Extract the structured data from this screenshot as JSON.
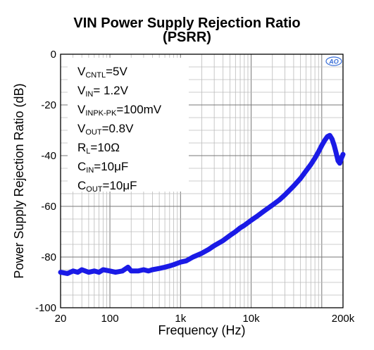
{
  "chart_data": {
    "type": "line",
    "title": "VIN Power Supply Rejection Ratio",
    "subtitle": "(PSRR)",
    "xlabel": "Frequency (Hz)",
    "ylabel": "Power Supply Rejection Ratio (dB)",
    "xscale": "log",
    "xlim": [
      20,
      200000
    ],
    "ylim": [
      -100,
      0
    ],
    "x_tick_labels": [
      "20",
      "100",
      "1k",
      "10k",
      "200k"
    ],
    "x_tick_values": [
      20,
      100,
      1000,
      10000,
      200000
    ],
    "y_tick_labels": [
      "0",
      "-20",
      "-40",
      "-60",
      "-80",
      "-100"
    ],
    "y_tick_values": [
      0,
      -20,
      -40,
      -60,
      -80,
      -100
    ],
    "grid": true,
    "series_color": "#1a1ae6",
    "series": [
      {
        "x": [
          20,
          25,
          30,
          35,
          40,
          50,
          60,
          70,
          80,
          100,
          120,
          150,
          180,
          200,
          250,
          300,
          350,
          400,
          500,
          600,
          700,
          800,
          1000,
          1200,
          1500,
          2000,
          2500,
          3000,
          4000,
          5000,
          6000,
          7000,
          8000,
          10000,
          12000,
          15000,
          20000,
          25000,
          30000,
          40000,
          50000,
          60000,
          70000,
          80000,
          90000,
          100000,
          110000,
          120000,
          130000,
          140000,
          150000,
          160000,
          170000,
          180000,
          190000,
          200000
        ],
        "y": [
          -86,
          -86.5,
          -85.5,
          -86,
          -85,
          -86,
          -85.5,
          -86,
          -85,
          -85.5,
          -86,
          -85.5,
          -84,
          -85.5,
          -85.5,
          -85,
          -85.5,
          -85,
          -84.5,
          -84,
          -83.5,
          -83,
          -82,
          -81.5,
          -80,
          -78.5,
          -77,
          -75.5,
          -73.5,
          -71.5,
          -70,
          -68.5,
          -67.5,
          -65.5,
          -64,
          -62,
          -59.5,
          -57.5,
          -55.5,
          -52,
          -49,
          -46,
          -43.5,
          -41,
          -38.5,
          -36,
          -34,
          -32.5,
          -32,
          -33.5,
          -36,
          -39,
          -42,
          -43,
          -41,
          -39.5
        ]
      }
    ]
  },
  "legend": {
    "lines": [
      {
        "main": "V",
        "sub": "CNTL",
        "rest": "=5V"
      },
      {
        "main": "V",
        "sub": "IN",
        "rest": "= 1.2V"
      },
      {
        "main": "V",
        "sub": "INPK-PK",
        "rest": "=100mV"
      },
      {
        "main": "V",
        "sub": "OUT",
        "rest": "=0.8V"
      },
      {
        "main": "R",
        "sub": "L",
        "rest": "=10Ω"
      },
      {
        "main": "C",
        "sub": "IN",
        "rest": "=10μF"
      },
      {
        "main": "C",
        "sub": "OUT",
        "rest": "=10μF"
      }
    ]
  },
  "logo": {
    "text": "AO",
    "color": "#3a6fd8"
  }
}
